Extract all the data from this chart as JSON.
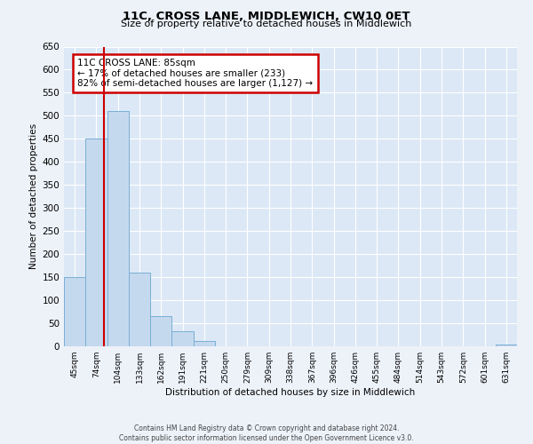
{
  "title1": "11C, CROSS LANE, MIDDLEWICH, CW10 0ET",
  "title2": "Size of property relative to detached houses in Middlewich",
  "xlabel": "Distribution of detached houses by size in Middlewich",
  "ylabel": "Number of detached properties",
  "bar_labels": [
    "45sqm",
    "74sqm",
    "104sqm",
    "133sqm",
    "162sqm",
    "191sqm",
    "221sqm",
    "250sqm",
    "279sqm",
    "309sqm",
    "338sqm",
    "367sqm",
    "396sqm",
    "426sqm",
    "455sqm",
    "484sqm",
    "514sqm",
    "543sqm",
    "572sqm",
    "601sqm",
    "631sqm"
  ],
  "bar_values": [
    150,
    450,
    510,
    160,
    65,
    32,
    12,
    0,
    0,
    0,
    0,
    0,
    0,
    0,
    0,
    0,
    0,
    0,
    0,
    0,
    4
  ],
  "bar_color": "#c5d9ee",
  "bar_edge_color": "#7aaed6",
  "ylim": [
    0,
    650
  ],
  "yticks": [
    0,
    50,
    100,
    150,
    200,
    250,
    300,
    350,
    400,
    450,
    500,
    550,
    600,
    650
  ],
  "vline_color": "#cc0000",
  "annotation_title": "11C CROSS LANE: 85sqm",
  "annotation_line1": "← 17% of detached houses are smaller (233)",
  "annotation_line2": "82% of semi-detached houses are larger (1,127) →",
  "annotation_box_edge_color": "#cc0000",
  "footer1": "Contains HM Land Registry data © Crown copyright and database right 2024.",
  "footer2": "Contains public sector information licensed under the Open Government Licence v3.0.",
  "bg_color": "#edf2f9",
  "plot_bg_color": "#dce8f5"
}
